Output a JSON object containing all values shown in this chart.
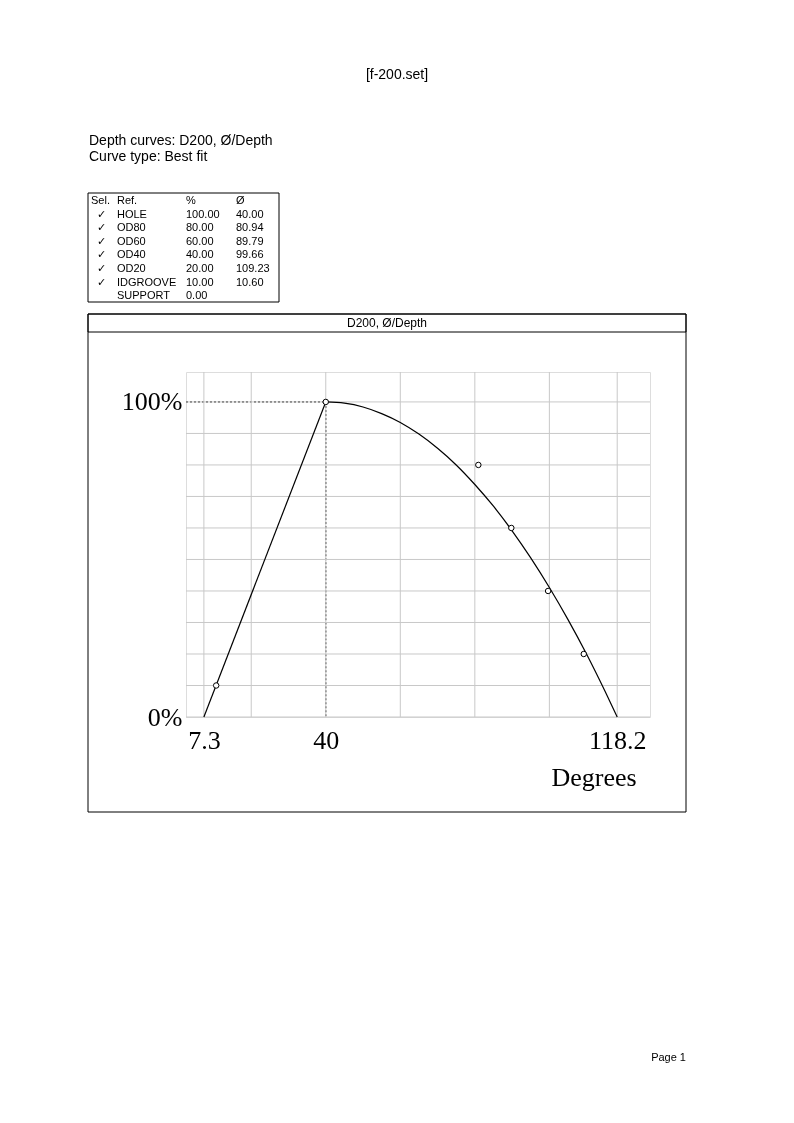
{
  "chart_data": {
    "type": "scatter",
    "title": "D200, Ø/Depth",
    "xlabel": "Degrees",
    "xlim": [
      2.5,
      127
    ],
    "ylim": [
      0,
      109.5
    ],
    "xticks": [
      7.3,
      {
        "value": 20,
        "label": null
      },
      40,
      {
        "value": 60,
        "label": null
      },
      {
        "value": 80,
        "label": null
      },
      {
        "value": 100,
        "label": null
      },
      118.2
    ],
    "yticks": [
      {
        "value": 0,
        "label": "0%"
      },
      {
        "value": 10,
        "label": null
      },
      {
        "value": 20,
        "label": null
      },
      {
        "value": 30,
        "label": null
      },
      {
        "value": 40,
        "label": null
      },
      {
        "value": 50,
        "label": null
      },
      {
        "value": 60,
        "label": null
      },
      {
        "value": 70,
        "label": null
      },
      {
        "value": 80,
        "label": null
      },
      {
        "value": 90,
        "label": null
      },
      {
        "value": 100,
        "label": "100%"
      }
    ],
    "grid": true,
    "series": [
      {
        "type": "line",
        "color": "#000000",
        "line_style": "dotted",
        "x": [
          2.5,
          40,
          40
        ],
        "values": [
          100,
          100,
          0
        ]
      },
      {
        "type": "line",
        "color": "#000000",
        "line_style": "solid",
        "x": [
          7.3,
          40
        ],
        "values": [
          0,
          100
        ]
      },
      {
        "type": "line",
        "color": "#000000",
        "line_style": "solid",
        "x": [
          40,
          45,
          50,
          55,
          60,
          65,
          70,
          75,
          80,
          85,
          90,
          95,
          100,
          105,
          110,
          115,
          118.2
        ],
        "values": [
          100,
          99.6,
          98.4,
          96.3,
          93.5,
          89.8,
          85.3,
          80,
          73.8,
          66.9,
          59.1,
          50.5,
          41.1,
          30.9,
          19.9,
          8,
          0
        ]
      },
      {
        "type": "scatter",
        "color": "#000000",
        "marker": "circle",
        "x": [
          10.6,
          40,
          80.94,
          89.79,
          99.66,
          109.23
        ],
        "values": [
          10,
          100,
          80,
          60,
          40,
          20
        ]
      }
    ],
    "annotations": [
      "[f-200.set]",
      "Depth curves: D200, Ø/Depth",
      "Curve type: Best fit",
      "Sel.",
      "Ref.",
      "%",
      "Ø",
      "✓",
      "HOLE",
      "100.00",
      "40.00",
      "✓",
      "OD80",
      "80.00",
      "80.94",
      "✓",
      "OD60",
      "60.00",
      "89.79",
      "✓",
      "OD40",
      "40.00",
      "99.66",
      "✓",
      "OD20",
      "20.00",
      "109.23",
      "✓",
      "IDGROOVE",
      "10.00",
      "10.60",
      "SUPPORT",
      "0.00",
      "Page 1"
    ]
  }
}
